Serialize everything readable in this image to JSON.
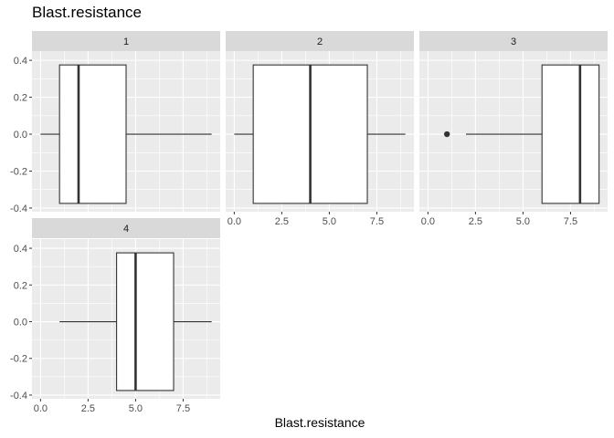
{
  "chart_data": {
    "type": "boxplot",
    "title": "Blast.resistance",
    "xlabel": "Blast.resistance",
    "ylabel": "",
    "xlim": [
      -0.45,
      9.45
    ],
    "ylim": [
      -0.42,
      0.45
    ],
    "x_ticks": [
      "0.0",
      "2.5",
      "5.0",
      "7.5"
    ],
    "y_ticks": [
      "-0.4",
      "-0.2",
      "0.0",
      "0.2",
      "0.4"
    ],
    "grid": true,
    "facets": [
      {
        "label": "1",
        "stats": {
          "whisker_low": 0,
          "q1": 1,
          "median": 2,
          "q3": 4.5,
          "whisker_high": 9
        },
        "outliers": []
      },
      {
        "label": "2",
        "stats": {
          "whisker_low": 0,
          "q1": 1,
          "median": 4,
          "q3": 7,
          "whisker_high": 9
        },
        "outliers": []
      },
      {
        "label": "3",
        "stats": {
          "whisker_low": 2,
          "q1": 6,
          "median": 8,
          "q3": 9,
          "whisker_high": 9
        },
        "outliers": [
          1
        ]
      },
      {
        "label": "4",
        "stats": {
          "whisker_low": 1,
          "q1": 4,
          "median": 5,
          "q3": 7,
          "whisker_high": 9
        },
        "outliers": []
      }
    ],
    "box_half_height": 0.375,
    "colors": {
      "panel_bg": "#ebebeb",
      "strip_bg": "#d9d9d9",
      "grid": "#ffffff",
      "box_fill": "#ffffff",
      "box_line": "#333333"
    }
  }
}
